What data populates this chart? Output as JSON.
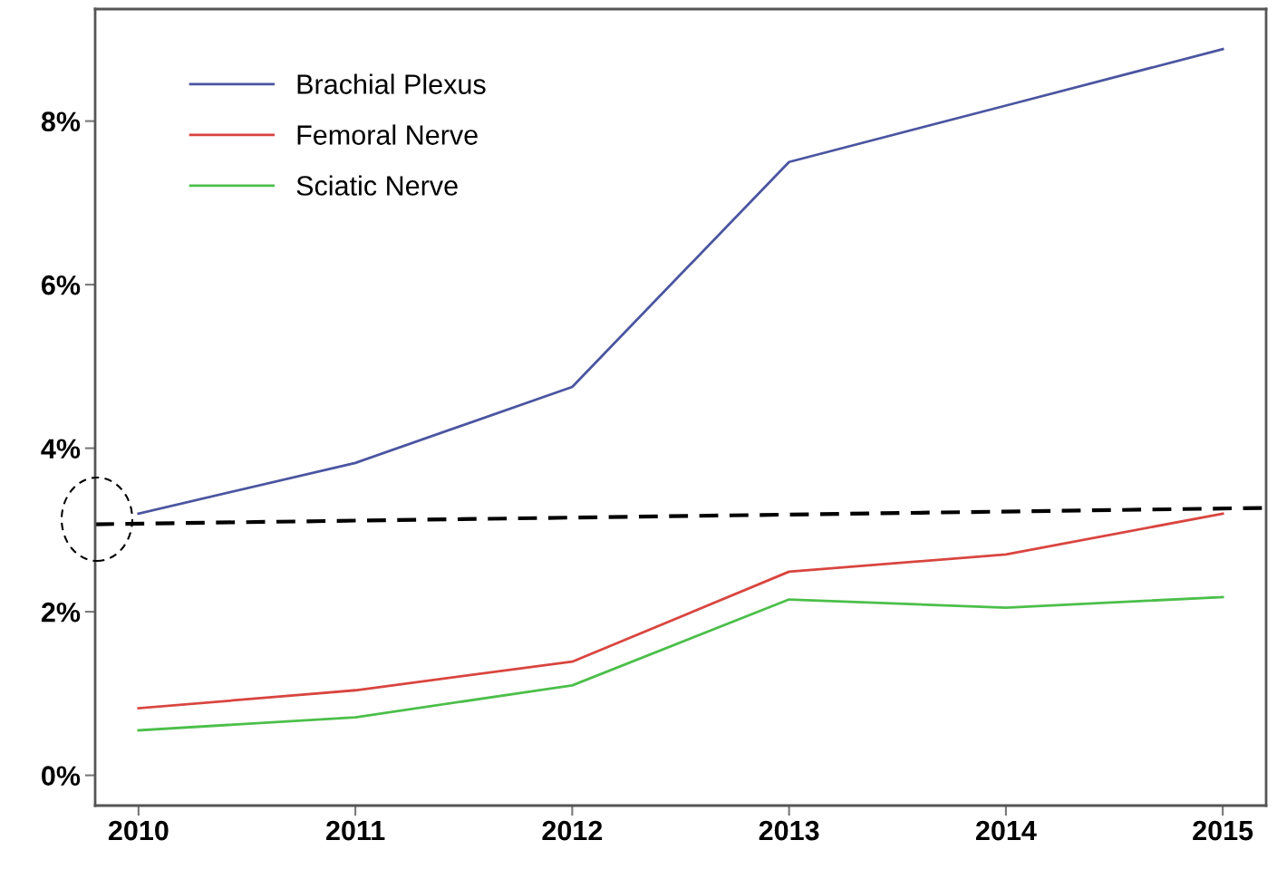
{
  "chart_data": {
    "type": "line",
    "x": [
      2010,
      2011,
      2012,
      2013,
      2014,
      2015
    ],
    "series": [
      {
        "name": "Brachial Plexus",
        "color": "#4b55a0",
        "values": [
          3.2,
          3.82,
          4.75,
          7.5,
          8.19,
          8.88
        ]
      },
      {
        "name": "Femoral Nerve",
        "color": "#d9453f",
        "values": [
          0.82,
          1.04,
          1.39,
          2.49,
          2.7,
          3.2
        ]
      },
      {
        "name": "Sciatic Nerve",
        "color": "#4cbf4a",
        "values": [
          0.55,
          0.71,
          1.1,
          2.15,
          2.05,
          2.18
        ]
      },
      {
        "type": "line",
        "color": "#000000",
        "line_style": "dashed",
        "x": [
          2009.8,
          2015.2
        ],
        "values": [
          3.07,
          3.27
        ]
      }
    ],
    "xlim": [
      2009.8,
      2015.2
    ],
    "xticks": [
      2010,
      2011,
      2012,
      2013,
      2014,
      2015
    ],
    "ylim": [
      -0.37,
      9.37
    ],
    "yticks": [
      {
        "value": 0,
        "label": "0%"
      },
      {
        "value": 2,
        "label": "2%"
      },
      {
        "value": 4,
        "label": "4%"
      },
      {
        "value": 6,
        "label": "6%"
      },
      {
        "value": 8,
        "label": "8%"
      }
    ],
    "grid": false,
    "legend": "top left",
    "line_style": "solid",
    "marker": "none"
  }
}
